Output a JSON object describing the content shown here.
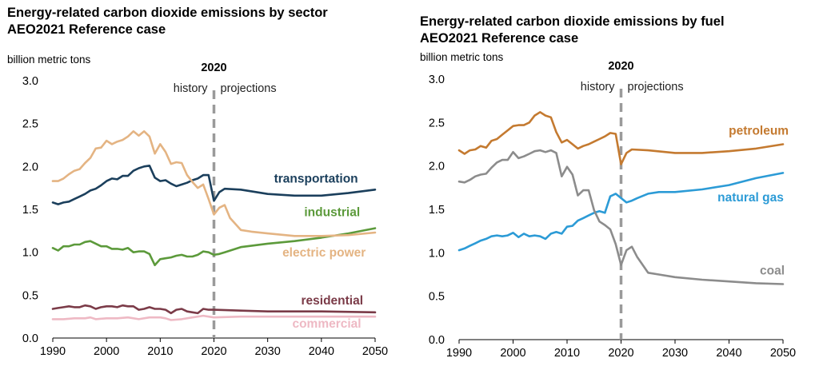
{
  "colors": {
    "transportation": "#1b3f5c",
    "industrial": "#5c9a3b",
    "electric_power": "#e4b483",
    "residential": "#7b3b48",
    "commercial": "#eeb9c4",
    "petroleum": "#c47a30",
    "natural_gas": "#2c9bd6",
    "coal": "#8c8c8c",
    "divider": "#9a9a9a",
    "axis_text": "#000000"
  },
  "chart_data": [
    {
      "type": "line",
      "title_line1": "Energy-related carbon dioxide emissions by sector",
      "title_line2": "AEO2021 Reference case",
      "ylabel": "billion metric tons",
      "xlim": [
        1990,
        2050
      ],
      "ylim": [
        0,
        3
      ],
      "xticks": [
        "1990",
        "2000",
        "2010",
        "2020",
        "2030",
        "2040",
        "2050"
      ],
      "yticks": [
        "0.0",
        "0.5",
        "1.0",
        "1.5",
        "2.0",
        "2.5",
        "3.0"
      ],
      "grid": false,
      "divider": {
        "year": 2020,
        "label": "2020",
        "left_label": "history",
        "right_label": "projections"
      },
      "series": [
        {
          "name": "transportation",
          "color_key": "transportation",
          "x": [
            1990,
            1991,
            1992,
            1993,
            1994,
            1995,
            1996,
            1997,
            1998,
            1999,
            2000,
            2001,
            2002,
            2003,
            2004,
            2005,
            2006,
            2007,
            2008,
            2009,
            2010,
            2011,
            2012,
            2013,
            2014,
            2015,
            2016,
            2017,
            2018,
            2019,
            2020,
            2021,
            2022,
            2025,
            2030,
            2035,
            2040,
            2045,
            2050
          ],
          "y": [
            1.58,
            1.56,
            1.58,
            1.59,
            1.62,
            1.65,
            1.68,
            1.72,
            1.74,
            1.78,
            1.83,
            1.86,
            1.85,
            1.89,
            1.89,
            1.95,
            1.98,
            2.0,
            2.01,
            1.87,
            1.83,
            1.84,
            1.8,
            1.77,
            1.79,
            1.81,
            1.84,
            1.86,
            1.9,
            1.9,
            1.6,
            1.7,
            1.74,
            1.73,
            1.68,
            1.66,
            1.66,
            1.69,
            1.73
          ]
        },
        {
          "name": "industrial",
          "color_key": "industrial",
          "x": [
            1990,
            1991,
            1992,
            1993,
            1994,
            1995,
            1996,
            1997,
            1998,
            1999,
            2000,
            2001,
            2002,
            2003,
            2004,
            2005,
            2006,
            2007,
            2008,
            2009,
            2010,
            2011,
            2012,
            2013,
            2014,
            2015,
            2016,
            2017,
            2018,
            2019,
            2020,
            2021,
            2022,
            2025,
            2030,
            2035,
            2040,
            2045,
            2050
          ],
          "y": [
            1.05,
            1.02,
            1.07,
            1.07,
            1.09,
            1.09,
            1.12,
            1.13,
            1.1,
            1.07,
            1.07,
            1.04,
            1.04,
            1.03,
            1.05,
            1.0,
            1.01,
            1.01,
            0.98,
            0.85,
            0.92,
            0.93,
            0.94,
            0.96,
            0.97,
            0.95,
            0.95,
            0.97,
            1.01,
            1.0,
            0.97,
            0.98,
            1.0,
            1.06,
            1.1,
            1.13,
            1.17,
            1.22,
            1.28
          ]
        },
        {
          "name": "electric power",
          "color_key": "electric_power",
          "x": [
            1990,
            1991,
            1992,
            1993,
            1994,
            1995,
            1996,
            1997,
            1998,
            1999,
            2000,
            2001,
            2002,
            2003,
            2004,
            2005,
            2006,
            2007,
            2008,
            2009,
            2010,
            2011,
            2012,
            2013,
            2014,
            2015,
            2016,
            2017,
            2018,
            2019,
            2020,
            2021,
            2022,
            2023,
            2025,
            2027,
            2030,
            2035,
            2040,
            2045,
            2050
          ],
          "y": [
            1.83,
            1.83,
            1.86,
            1.91,
            1.95,
            1.97,
            2.04,
            2.1,
            2.21,
            2.22,
            2.3,
            2.26,
            2.29,
            2.31,
            2.35,
            2.41,
            2.36,
            2.41,
            2.35,
            2.15,
            2.26,
            2.17,
            2.03,
            2.05,
            2.04,
            1.9,
            1.82,
            1.75,
            1.79,
            1.62,
            1.44,
            1.52,
            1.55,
            1.4,
            1.26,
            1.24,
            1.22,
            1.19,
            1.19,
            1.2,
            1.23
          ]
        },
        {
          "name": "residential",
          "color_key": "residential",
          "x": [
            1990,
            1991,
            1992,
            1993,
            1994,
            1995,
            1996,
            1997,
            1998,
            1999,
            2000,
            2001,
            2002,
            2003,
            2004,
            2005,
            2006,
            2007,
            2008,
            2009,
            2010,
            2011,
            2012,
            2013,
            2014,
            2015,
            2016,
            2017,
            2018,
            2019,
            2020,
            2025,
            2030,
            2040,
            2050
          ],
          "y": [
            0.34,
            0.35,
            0.36,
            0.37,
            0.36,
            0.36,
            0.38,
            0.37,
            0.34,
            0.36,
            0.37,
            0.37,
            0.36,
            0.38,
            0.37,
            0.37,
            0.33,
            0.34,
            0.36,
            0.34,
            0.34,
            0.33,
            0.29,
            0.33,
            0.34,
            0.31,
            0.3,
            0.29,
            0.34,
            0.33,
            0.33,
            0.32,
            0.31,
            0.31,
            0.3
          ]
        },
        {
          "name": "commercial",
          "color_key": "commercial",
          "x": [
            1990,
            1992,
            1994,
            1996,
            1997,
            1998,
            2000,
            2002,
            2004,
            2006,
            2008,
            2010,
            2011,
            2012,
            2014,
            2016,
            2018,
            2019,
            2020,
            2025,
            2030,
            2040,
            2050
          ],
          "y": [
            0.22,
            0.22,
            0.23,
            0.23,
            0.24,
            0.22,
            0.23,
            0.23,
            0.24,
            0.22,
            0.24,
            0.24,
            0.23,
            0.21,
            0.22,
            0.24,
            0.26,
            0.25,
            0.24,
            0.25,
            0.25,
            0.25,
            0.25
          ]
        }
      ],
      "labels": [
        {
          "text": "transportation",
          "series": "transportation",
          "x": 2039,
          "y": 1.81,
          "anchor": "middle"
        },
        {
          "text": "industrial",
          "series": "industrial",
          "x": 2042,
          "y": 1.42,
          "anchor": "middle"
        },
        {
          "text": "electric power",
          "series": "electric power",
          "x": 2040.5,
          "y": 0.95,
          "anchor": "middle"
        },
        {
          "text": "residential",
          "series": "residential",
          "x": 2042,
          "y": 0.39,
          "anchor": "middle"
        },
        {
          "text": "commercial",
          "series": "commercial",
          "x": 2041,
          "y": 0.12,
          "anchor": "middle"
        }
      ]
    },
    {
      "type": "line",
      "title_line1": "Energy-related carbon dioxide emissions by fuel",
      "title_line2": "AEO2021 Reference case",
      "ylabel": "billion metric tons",
      "xlim": [
        1990,
        2050
      ],
      "ylim": [
        0,
        3
      ],
      "xticks": [
        "1990",
        "2000",
        "2010",
        "2020",
        "2030",
        "2040",
        "2050"
      ],
      "yticks": [
        "0.0",
        "0.5",
        "1.0",
        "1.5",
        "2.0",
        "2.5",
        "3.0"
      ],
      "grid": false,
      "divider": {
        "year": 2020,
        "label": "2020",
        "left_label": "history",
        "right_label": "projections"
      },
      "series": [
        {
          "name": "petroleum",
          "color_key": "petroleum",
          "x": [
            1990,
            1991,
            1992,
            1993,
            1994,
            1995,
            1996,
            1997,
            1998,
            1999,
            2000,
            2001,
            2002,
            2003,
            2004,
            2005,
            2006,
            2007,
            2008,
            2009,
            2010,
            2011,
            2012,
            2013,
            2014,
            2015,
            2016,
            2017,
            2018,
            2019,
            2020,
            2021,
            2022,
            2025,
            2030,
            2035,
            2040,
            2045,
            2050
          ],
          "y": [
            2.18,
            2.14,
            2.18,
            2.19,
            2.23,
            2.21,
            2.29,
            2.31,
            2.36,
            2.41,
            2.46,
            2.47,
            2.47,
            2.5,
            2.58,
            2.62,
            2.58,
            2.56,
            2.39,
            2.27,
            2.3,
            2.25,
            2.2,
            2.23,
            2.25,
            2.28,
            2.31,
            2.34,
            2.38,
            2.37,
            2.02,
            2.15,
            2.19,
            2.18,
            2.15,
            2.15,
            2.17,
            2.2,
            2.25
          ]
        },
        {
          "name": "natural gas",
          "color_key": "natural_gas",
          "x": [
            1990,
            1991,
            1992,
            1993,
            1994,
            1995,
            1996,
            1997,
            1998,
            1999,
            2000,
            2001,
            2002,
            2003,
            2004,
            2005,
            2006,
            2007,
            2008,
            2009,
            2010,
            2011,
            2012,
            2013,
            2014,
            2015,
            2016,
            2017,
            2018,
            2019,
            2020,
            2021,
            2022,
            2023,
            2025,
            2027,
            2030,
            2035,
            2040,
            2045,
            2050
          ],
          "y": [
            1.03,
            1.05,
            1.08,
            1.11,
            1.14,
            1.16,
            1.19,
            1.2,
            1.19,
            1.2,
            1.23,
            1.18,
            1.22,
            1.19,
            1.2,
            1.19,
            1.16,
            1.22,
            1.24,
            1.22,
            1.3,
            1.31,
            1.37,
            1.4,
            1.43,
            1.46,
            1.48,
            1.46,
            1.65,
            1.68,
            1.63,
            1.58,
            1.6,
            1.63,
            1.68,
            1.7,
            1.7,
            1.73,
            1.78,
            1.86,
            1.92
          ]
        },
        {
          "name": "coal",
          "color_key": "coal",
          "x": [
            1990,
            1991,
            1992,
            1993,
            1994,
            1995,
            1996,
            1997,
            1998,
            1999,
            2000,
            2001,
            2002,
            2003,
            2004,
            2005,
            2006,
            2007,
            2008,
            2009,
            2010,
            2011,
            2012,
            2013,
            2014,
            2015,
            2016,
            2017,
            2018,
            2019,
            2020,
            2021,
            2022,
            2023,
            2025,
            2027,
            2030,
            2035,
            2040,
            2045,
            2050
          ],
          "y": [
            1.82,
            1.81,
            1.84,
            1.88,
            1.9,
            1.91,
            1.98,
            2.04,
            2.07,
            2.07,
            2.16,
            2.09,
            2.11,
            2.14,
            2.17,
            2.18,
            2.16,
            2.18,
            2.15,
            1.88,
            1.99,
            1.9,
            1.66,
            1.72,
            1.72,
            1.49,
            1.36,
            1.32,
            1.27,
            1.1,
            0.86,
            1.03,
            1.07,
            0.95,
            0.77,
            0.75,
            0.72,
            0.69,
            0.67,
            0.65,
            0.64
          ]
        }
      ],
      "labels": [
        {
          "text": "petroleum",
          "series": "petroleum",
          "x": 2045.5,
          "y": 2.36,
          "anchor": "middle"
        },
        {
          "text": "natural gas",
          "series": "natural gas",
          "x": 2044,
          "y": 1.59,
          "anchor": "middle"
        },
        {
          "text": "coal",
          "series": "coal",
          "x": 2048,
          "y": 0.75,
          "anchor": "middle"
        }
      ]
    }
  ]
}
